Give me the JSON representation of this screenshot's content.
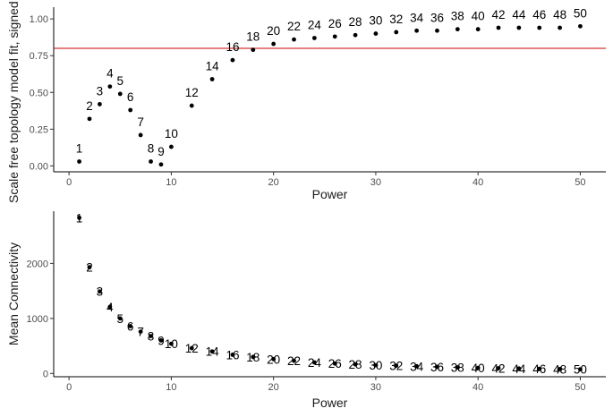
{
  "chart_data": [
    {
      "type": "scatter",
      "xlabel": "Power",
      "ylabel": "Scale free topology model fit, signed R^2",
      "xlim": [
        -1.5,
        52.5
      ],
      "ylim": [
        -0.04,
        1.08
      ],
      "xticks": [
        0,
        10,
        20,
        30,
        40,
        50
      ],
      "yticks": [
        0.0,
        0.25,
        0.5,
        0.75,
        1.0
      ],
      "ytick_labels": [
        "0.00",
        "0.25",
        "0.50",
        "0.75",
        "1.00"
      ],
      "threshold": 0.8,
      "threshold_color": "#cc0000",
      "grid": false,
      "x": [
        1,
        2,
        3,
        4,
        5,
        6,
        7,
        8,
        9,
        10,
        12,
        14,
        16,
        18,
        20,
        22,
        24,
        26,
        28,
        30,
        32,
        34,
        36,
        38,
        40,
        42,
        44,
        46,
        48,
        50
      ],
      "y": [
        0.03,
        0.32,
        0.42,
        0.54,
        0.49,
        0.38,
        0.21,
        0.03,
        0.01,
        0.13,
        0.41,
        0.59,
        0.72,
        0.79,
        0.83,
        0.86,
        0.87,
        0.88,
        0.89,
        0.9,
        0.91,
        0.92,
        0.92,
        0.93,
        0.93,
        0.94,
        0.94,
        0.94,
        0.94,
        0.95
      ],
      "point_labels": [
        "1",
        "2",
        "3",
        "4",
        "5",
        "6",
        "7",
        "8",
        "9",
        "10",
        "12",
        "14",
        "16",
        "18",
        "20",
        "22",
        "24",
        "26",
        "28",
        "30",
        "32",
        "34",
        "36",
        "38",
        "40",
        "42",
        "44",
        "46",
        "48",
        "50"
      ]
    },
    {
      "type": "scatter",
      "xlabel": "Power",
      "ylabel": "Mean Connectivity",
      "xlim": [
        -1.5,
        52.5
      ],
      "ylim": [
        -60,
        2950
      ],
      "xticks": [
        0,
        10,
        20,
        30,
        40,
        50
      ],
      "yticks": [
        0,
        1000,
        2000
      ],
      "ytick_labels": [
        "0",
        "1000",
        "2000"
      ],
      "grid": false,
      "x": [
        1,
        2,
        3,
        4,
        5,
        6,
        7,
        8,
        9,
        10,
        12,
        14,
        16,
        18,
        20,
        22,
        24,
        26,
        28,
        30,
        32,
        34,
        36,
        38,
        40,
        42,
        44,
        46,
        48,
        50
      ],
      "y": [
        2830,
        1930,
        1490,
        1210,
        1000,
        860,
        760,
        680,
        600,
        540,
        460,
        400,
        340,
        300,
        260,
        230,
        200,
        180,
        165,
        150,
        140,
        130,
        120,
        110,
        100,
        95,
        90,
        85,
        80,
        75
      ],
      "point_labels": [
        "1",
        "2",
        "3",
        "4",
        "5",
        "6",
        "7",
        "8",
        "9",
        "10",
        "12",
        "14",
        "16",
        "18",
        "20",
        "22",
        "24",
        "26",
        "28",
        "30",
        "32",
        "34",
        "36",
        "38",
        "40",
        "42",
        "44",
        "46",
        "48",
        "50"
      ]
    }
  ]
}
